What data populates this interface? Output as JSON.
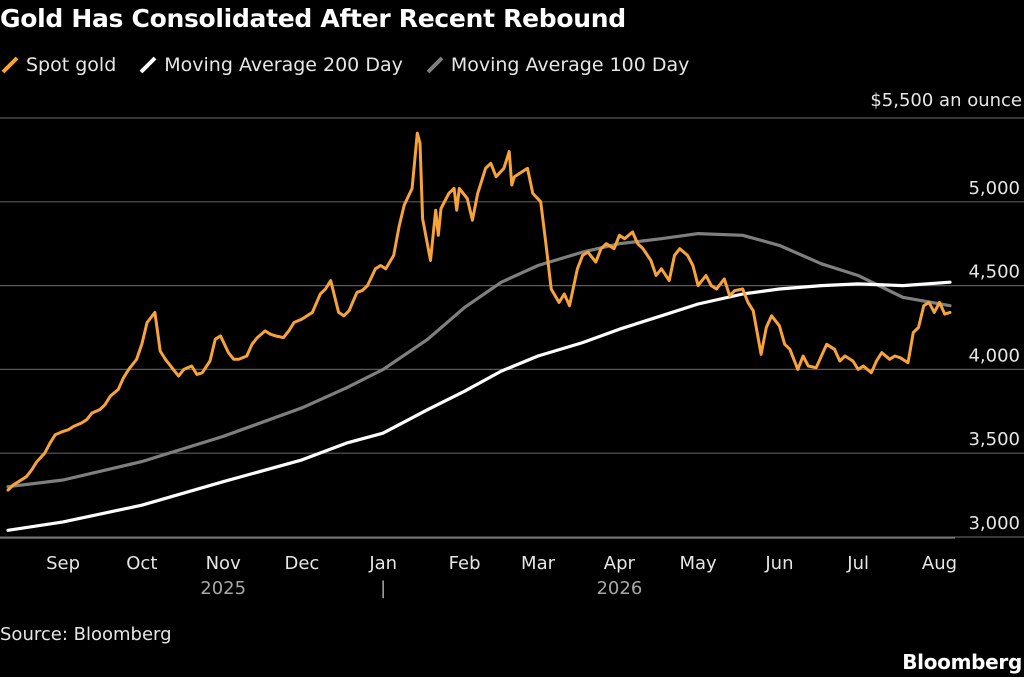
{
  "title": "Gold Has Consolidated After Recent Rebound",
  "unit_label": "$5,500 an ounce",
  "source": "Source: Bloomberg",
  "brand": "Bloomberg",
  "colors": {
    "background": "#000000",
    "spot_gold": "#f7a33a",
    "ma200": "#ffffff",
    "ma100": "#7f7f7f",
    "gridline": "#5a5a5a",
    "text": "#e6e6e6"
  },
  "chart_data": {
    "type": "line",
    "title": "Gold Has Consolidated After Recent Rebound",
    "xlabel": "",
    "ylabel": "$5,500 an ounce",
    "ylim": [
      3000,
      5500
    ],
    "yticks": [
      "3,000",
      "3,500",
      "4,000",
      "4,500",
      "5,000",
      "$5,500 an ounce"
    ],
    "ytick_values": [
      3000,
      3500,
      4000,
      4500,
      5000,
      5500
    ],
    "xrange": [
      "2025-08-25",
      "2026-08-19"
    ],
    "xticks": [
      {
        "label": "Sep",
        "date": "2025-09-15"
      },
      {
        "label": "Oct",
        "date": "2025-10-15"
      },
      {
        "label": "Nov",
        "date": "2025-11-15"
      },
      {
        "label": "Dec",
        "date": "2025-12-15"
      },
      {
        "label": "Jan",
        "date": "2026-01-15"
      },
      {
        "label": "Feb",
        "date": "2026-02-15"
      },
      {
        "label": "Mar",
        "date": "2026-03-15"
      },
      {
        "label": "Apr",
        "date": "2026-04-15"
      },
      {
        "label": "May",
        "date": "2026-05-15"
      },
      {
        "label": "Jun",
        "date": "2026-06-15"
      },
      {
        "label": "Jul",
        "date": "2026-07-15"
      },
      {
        "label": "Aug",
        "date": "2026-08-15"
      }
    ],
    "year_labels": [
      {
        "label": "2025",
        "date": "2025-11-15"
      },
      {
        "label": "|",
        "date": "2026-01-15"
      },
      {
        "label": "2026",
        "date": "2026-04-15"
      }
    ],
    "legend_position": "top-left",
    "grid": "horizontal",
    "series": [
      {
        "name": "Spot gold",
        "color": "#f7a33a",
        "points": [
          [
            "2025-08-25",
            3280
          ],
          [
            "2025-08-27",
            3310
          ],
          [
            "2025-08-29",
            3330
          ],
          [
            "2025-09-01",
            3360
          ],
          [
            "2025-09-03",
            3400
          ],
          [
            "2025-09-05",
            3450
          ],
          [
            "2025-09-08",
            3500
          ],
          [
            "2025-09-10",
            3560
          ],
          [
            "2025-09-12",
            3610
          ],
          [
            "2025-09-15",
            3630
          ],
          [
            "2025-09-17",
            3640
          ],
          [
            "2025-09-19",
            3660
          ],
          [
            "2025-09-22",
            3680
          ],
          [
            "2025-09-24",
            3700
          ],
          [
            "2025-09-26",
            3740
          ],
          [
            "2025-09-29",
            3760
          ],
          [
            "2025-10-01",
            3790
          ],
          [
            "2025-10-03",
            3840
          ],
          [
            "2025-10-06",
            3880
          ],
          [
            "2025-10-08",
            3950
          ],
          [
            "2025-10-10",
            4000
          ],
          [
            "2025-10-13",
            4060
          ],
          [
            "2025-10-15",
            4150
          ],
          [
            "2025-10-17",
            4280
          ],
          [
            "2025-10-20",
            4340
          ],
          [
            "2025-10-22",
            4110
          ],
          [
            "2025-10-24",
            4060
          ],
          [
            "2025-10-27",
            4000
          ],
          [
            "2025-10-29",
            3960
          ],
          [
            "2025-10-31",
            4000
          ],
          [
            "2025-11-03",
            4020
          ],
          [
            "2025-11-05",
            3970
          ],
          [
            "2025-11-07",
            3980
          ],
          [
            "2025-11-10",
            4050
          ],
          [
            "2025-11-12",
            4180
          ],
          [
            "2025-11-14",
            4200
          ],
          [
            "2025-11-17",
            4100
          ],
          [
            "2025-11-19",
            4060
          ],
          [
            "2025-11-21",
            4060
          ],
          [
            "2025-11-24",
            4080
          ],
          [
            "2025-11-26",
            4150
          ],
          [
            "2025-11-28",
            4190
          ],
          [
            "2025-12-01",
            4230
          ],
          [
            "2025-12-03",
            4210
          ],
          [
            "2025-12-05",
            4200
          ],
          [
            "2025-12-08",
            4190
          ],
          [
            "2025-12-10",
            4230
          ],
          [
            "2025-12-12",
            4280
          ],
          [
            "2025-12-15",
            4300
          ],
          [
            "2025-12-17",
            4320
          ],
          [
            "2025-12-19",
            4340
          ],
          [
            "2025-12-22",
            4450
          ],
          [
            "2025-12-24",
            4480
          ],
          [
            "2025-12-26",
            4530
          ],
          [
            "2025-12-29",
            4340
          ],
          [
            "2025-12-31",
            4320
          ],
          [
            "2026-01-02",
            4350
          ],
          [
            "2026-01-05",
            4460
          ],
          [
            "2026-01-07",
            4470
          ],
          [
            "2026-01-09",
            4500
          ],
          [
            "2026-01-12",
            4600
          ],
          [
            "2026-01-14",
            4620
          ],
          [
            "2026-01-16",
            4600
          ],
          [
            "2026-01-19",
            4680
          ],
          [
            "2026-01-21",
            4850
          ],
          [
            "2026-01-23",
            4980
          ],
          [
            "2026-01-26",
            5080
          ],
          [
            "2026-01-28",
            5410
          ],
          [
            "2026-01-29",
            5350
          ],
          [
            "2026-01-30",
            4900
          ],
          [
            "2026-02-02",
            4650
          ],
          [
            "2026-02-04",
            4950
          ],
          [
            "2026-02-05",
            4800
          ],
          [
            "2026-02-06",
            4960
          ],
          [
            "2026-02-09",
            5050
          ],
          [
            "2026-02-11",
            5080
          ],
          [
            "2026-02-12",
            4950
          ],
          [
            "2026-02-13",
            5080
          ],
          [
            "2026-02-16",
            5020
          ],
          [
            "2026-02-18",
            4890
          ],
          [
            "2026-02-20",
            5050
          ],
          [
            "2026-02-23",
            5200
          ],
          [
            "2026-02-25",
            5230
          ],
          [
            "2026-02-27",
            5150
          ],
          [
            "2026-03-02",
            5200
          ],
          [
            "2026-03-04",
            5300
          ],
          [
            "2026-03-05",
            5100
          ],
          [
            "2026-03-06",
            5150
          ],
          [
            "2026-03-09",
            5180
          ],
          [
            "2026-03-11",
            5200
          ],
          [
            "2026-03-13",
            5050
          ],
          [
            "2026-03-16",
            5000
          ],
          [
            "2026-03-18",
            4750
          ],
          [
            "2026-03-20",
            4480
          ],
          [
            "2026-03-23",
            4400
          ],
          [
            "2026-03-25",
            4450
          ],
          [
            "2026-03-27",
            4380
          ],
          [
            "2026-03-30",
            4600
          ],
          [
            "2026-04-01",
            4680
          ],
          [
            "2026-04-03",
            4700
          ],
          [
            "2026-04-06",
            4640
          ],
          [
            "2026-04-08",
            4720
          ],
          [
            "2026-04-10",
            4750
          ],
          [
            "2026-04-13",
            4720
          ],
          [
            "2026-04-15",
            4800
          ],
          [
            "2026-04-17",
            4780
          ],
          [
            "2026-04-20",
            4820
          ],
          [
            "2026-04-22",
            4750
          ],
          [
            "2026-04-24",
            4720
          ],
          [
            "2026-04-27",
            4650
          ],
          [
            "2026-04-29",
            4560
          ],
          [
            "2026-05-01",
            4600
          ],
          [
            "2026-05-04",
            4530
          ],
          [
            "2026-05-06",
            4680
          ],
          [
            "2026-05-08",
            4720
          ],
          [
            "2026-05-11",
            4680
          ],
          [
            "2026-05-13",
            4620
          ],
          [
            "2026-05-15",
            4500
          ],
          [
            "2026-05-18",
            4560
          ],
          [
            "2026-05-20",
            4500
          ],
          [
            "2026-05-22",
            4480
          ],
          [
            "2026-05-25",
            4540
          ],
          [
            "2026-05-27",
            4440
          ],
          [
            "2026-05-29",
            4470
          ],
          [
            "2026-06-01",
            4480
          ],
          [
            "2026-06-03",
            4400
          ],
          [
            "2026-06-05",
            4350
          ],
          [
            "2026-06-08",
            4090
          ],
          [
            "2026-06-10",
            4250
          ],
          [
            "2026-06-12",
            4320
          ],
          [
            "2026-06-15",
            4260
          ],
          [
            "2026-06-17",
            4150
          ],
          [
            "2026-06-19",
            4120
          ],
          [
            "2026-06-22",
            4000
          ],
          [
            "2026-06-24",
            4080
          ],
          [
            "2026-06-26",
            4020
          ],
          [
            "2026-06-29",
            4010
          ],
          [
            "2026-07-01",
            4080
          ],
          [
            "2026-07-03",
            4150
          ],
          [
            "2026-07-06",
            4120
          ],
          [
            "2026-07-08",
            4050
          ],
          [
            "2026-07-10",
            4080
          ],
          [
            "2026-07-13",
            4050
          ],
          [
            "2026-07-15",
            4000
          ],
          [
            "2026-07-17",
            4020
          ],
          [
            "2026-07-20",
            3980
          ],
          [
            "2026-07-22",
            4050
          ],
          [
            "2026-07-24",
            4100
          ],
          [
            "2026-07-27",
            4060
          ],
          [
            "2026-07-29",
            4080
          ],
          [
            "2026-07-31",
            4070
          ],
          [
            "2026-08-03",
            4040
          ],
          [
            "2026-08-05",
            4220
          ],
          [
            "2026-08-07",
            4250
          ],
          [
            "2026-08-09",
            4380
          ],
          [
            "2026-08-11",
            4400
          ],
          [
            "2026-08-13",
            4340
          ],
          [
            "2026-08-15",
            4400
          ],
          [
            "2026-08-17",
            4330
          ],
          [
            "2026-08-19",
            4340
          ]
        ]
      },
      {
        "name": "Moving Average 200 Day",
        "color": "#ffffff",
        "points": [
          [
            "2025-08-25",
            3040
          ],
          [
            "2025-09-15",
            3090
          ],
          [
            "2025-10-15",
            3190
          ],
          [
            "2025-11-15",
            3330
          ],
          [
            "2025-12-15",
            3460
          ],
          [
            "2026-01-01",
            3560
          ],
          [
            "2026-01-15",
            3620
          ],
          [
            "2026-02-01",
            3760
          ],
          [
            "2026-02-15",
            3870
          ],
          [
            "2026-03-01",
            3990
          ],
          [
            "2026-03-15",
            4080
          ],
          [
            "2026-04-01",
            4160
          ],
          [
            "2026-04-15",
            4240
          ],
          [
            "2026-05-01",
            4320
          ],
          [
            "2026-05-15",
            4390
          ],
          [
            "2026-06-01",
            4450
          ],
          [
            "2026-06-15",
            4480
          ],
          [
            "2026-07-01",
            4500
          ],
          [
            "2026-07-15",
            4510
          ],
          [
            "2026-08-01",
            4500
          ],
          [
            "2026-08-19",
            4520
          ]
        ]
      },
      {
        "name": "Moving Average 100 Day",
        "color": "#7f7f7f",
        "points": [
          [
            "2025-08-25",
            3300
          ],
          [
            "2025-09-15",
            3340
          ],
          [
            "2025-10-15",
            3450
          ],
          [
            "2025-11-15",
            3600
          ],
          [
            "2025-12-15",
            3770
          ],
          [
            "2026-01-01",
            3890
          ],
          [
            "2026-01-15",
            4000
          ],
          [
            "2026-02-01",
            4180
          ],
          [
            "2026-02-15",
            4370
          ],
          [
            "2026-03-01",
            4520
          ],
          [
            "2026-03-15",
            4620
          ],
          [
            "2026-04-01",
            4700
          ],
          [
            "2026-04-15",
            4750
          ],
          [
            "2026-05-01",
            4780
          ],
          [
            "2026-05-15",
            4810
          ],
          [
            "2026-06-01",
            4800
          ],
          [
            "2026-06-15",
            4740
          ],
          [
            "2026-07-01",
            4630
          ],
          [
            "2026-07-15",
            4560
          ],
          [
            "2026-08-01",
            4430
          ],
          [
            "2026-08-19",
            4380
          ]
        ]
      }
    ]
  }
}
